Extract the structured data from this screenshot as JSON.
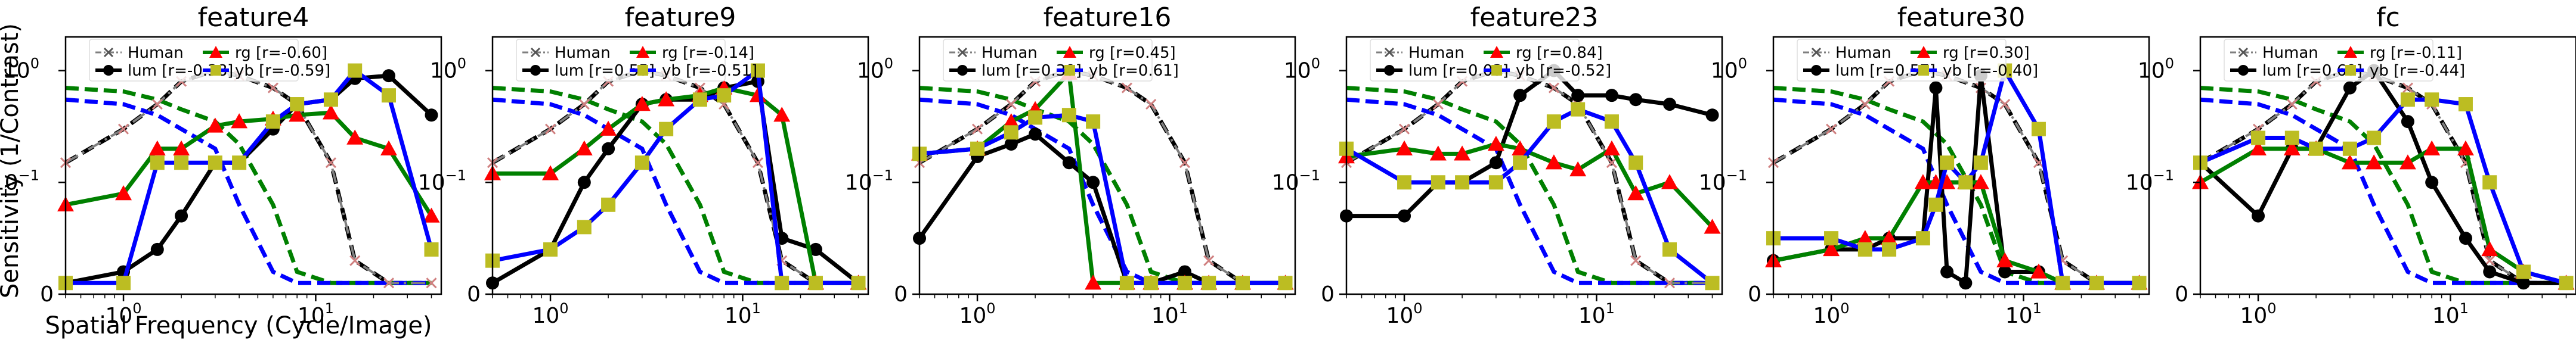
{
  "figure": {
    "ylabel": "Sensitivity (1/Contrast)",
    "xlabel": "Spatial Frequency (Cycle/Image)"
  },
  "styles": {
    "human": {
      "color": "#7f7f7f",
      "marker": "x",
      "dash": "dashdot"
    },
    "lum": {
      "color": "#000000",
      "marker": "circle",
      "dash": "solid"
    },
    "rg": {
      "color": "#008000",
      "marker": "triangle",
      "marker_color": "#ff0000",
      "dash": "solid"
    },
    "yb": {
      "color": "#0000ff",
      "marker": "square",
      "marker_color": "#bcbd22",
      "dash": "solid"
    },
    "ref_lum": {
      "color": "#000000",
      "dash": "dashed"
    },
    "ref_rg": {
      "color": "#008000",
      "dash": "dashed"
    },
    "ref_yb": {
      "color": "#0000ff",
      "dash": "dashed"
    }
  },
  "chart_data": [
    {
      "type": "line",
      "title": "feature4",
      "x_scale": "log",
      "y_scale": "symlog",
      "xlim": [
        0.5,
        45
      ],
      "ylim": [
        0,
        2
      ],
      "legend": [
        "Human",
        "lum [r=-0.38]",
        "rg [r=-0.60]",
        "yb [r=-0.59]"
      ],
      "x": [
        0.5,
        1,
        1.5,
        2,
        3,
        4,
        6,
        8,
        12,
        16,
        24,
        40
      ],
      "series": [
        {
          "key": "lum",
          "values": [
            0.01,
            0.02,
            0.04,
            0.07,
            0.15,
            0.15,
            0.3,
            0.5,
            0.55,
            0.85,
            0.9,
            0.4
          ]
        },
        {
          "key": "rg",
          "values": [
            0.08,
            0.09,
            0.2,
            0.2,
            0.32,
            0.35,
            0.37,
            0.4,
            0.42,
            0.25,
            0.2,
            0.07
          ]
        },
        {
          "key": "yb",
          "values": [
            0.01,
            0.01,
            0.15,
            0.15,
            0.15,
            0.15,
            0.35,
            0.5,
            0.55,
            1.0,
            0.6,
            0.04
          ]
        }
      ]
    },
    {
      "type": "line",
      "title": "feature9",
      "x_scale": "log",
      "y_scale": "symlog",
      "xlim": [
        0.5,
        45
      ],
      "ylim": [
        0,
        2
      ],
      "legend": [
        "Human",
        "lum [r=0.55]",
        "rg [r=-0.14]",
        "yb [r=-0.51]"
      ],
      "x": [
        0.5,
        1,
        1.5,
        2,
        3,
        4,
        6,
        8,
        12,
        16,
        24,
        40
      ],
      "series": [
        {
          "key": "lum",
          "values": [
            0.01,
            0.04,
            0.1,
            0.2,
            0.5,
            0.55,
            0.55,
            0.7,
            0.8,
            0.05,
            0.04,
            0.01
          ]
        },
        {
          "key": "rg",
          "values": [
            0.12,
            0.12,
            0.2,
            0.3,
            0.5,
            0.55,
            0.6,
            0.7,
            0.6,
            0.4,
            0.01,
            0.01
          ]
        },
        {
          "key": "yb",
          "values": [
            0.03,
            0.04,
            0.06,
            0.08,
            0.15,
            0.3,
            0.55,
            0.6,
            1.0,
            0.01,
            0.01,
            0.01
          ]
        }
      ]
    },
    {
      "type": "line",
      "title": "feature16",
      "x_scale": "log",
      "y_scale": "symlog",
      "xlim": [
        0.5,
        45
      ],
      "ylim": [
        0,
        2
      ],
      "legend": [
        "Human",
        "lum [r=0.39]",
        "rg [r=0.45]",
        "yb [r=0.61]"
      ],
      "x": [
        0.5,
        1,
        1.5,
        2,
        3,
        4,
        6,
        8,
        12,
        16,
        24,
        40
      ],
      "series": [
        {
          "key": "lum",
          "values": [
            0.05,
            0.17,
            0.22,
            0.27,
            0.15,
            0.1,
            0.01,
            0.01,
            0.02,
            0.01,
            0.01,
            0.01
          ]
        },
        {
          "key": "rg",
          "values": [
            0.18,
            0.2,
            0.35,
            0.45,
            0.95,
            0.01,
            0.01,
            0.01,
            0.01,
            0.01,
            0.01,
            0.01
          ]
        },
        {
          "key": "yb",
          "values": [
            0.18,
            0.2,
            0.28,
            0.38,
            0.4,
            0.35,
            0.01,
            0.01,
            0.01,
            0.01,
            0.01,
            0.01
          ]
        }
      ]
    },
    {
      "type": "line",
      "title": "feature23",
      "x_scale": "log",
      "y_scale": "symlog",
      "xlim": [
        0.5,
        45
      ],
      "ylim": [
        0,
        2
      ],
      "legend": [
        "Human",
        "lum [r=0.03]",
        "rg [r=0.84]",
        "yb [r=-0.52]"
      ],
      "x": [
        0.5,
        1,
        1.5,
        2,
        3,
        4,
        6,
        8,
        12,
        16,
        24,
        40
      ],
      "series": [
        {
          "key": "lum",
          "values": [
            0.07,
            0.07,
            0.1,
            0.1,
            0.15,
            0.6,
            1.0,
            0.6,
            0.6,
            0.55,
            0.5,
            0.4
          ]
        },
        {
          "key": "rg",
          "values": [
            0.17,
            0.2,
            0.18,
            0.18,
            0.22,
            0.2,
            0.15,
            0.13,
            0.2,
            0.09,
            0.1,
            0.06
          ]
        },
        {
          "key": "yb",
          "values": [
            0.2,
            0.1,
            0.1,
            0.1,
            0.1,
            0.15,
            0.35,
            0.45,
            0.35,
            0.15,
            0.04,
            0.01
          ]
        }
      ]
    },
    {
      "type": "line",
      "title": "feature30",
      "x_scale": "log",
      "y_scale": "symlog",
      "xlim": [
        0.5,
        45
      ],
      "ylim": [
        0,
        2
      ],
      "legend": [
        "Human",
        "lum [r=0.57]",
        "rg [r=0.30]",
        "yb [r=-0.40]"
      ],
      "x": [
        0.5,
        1,
        1.5,
        2,
        3,
        3.5,
        4,
        5,
        6,
        8,
        12,
        16,
        24,
        40
      ],
      "series": [
        {
          "key": "lum",
          "values": [
            0.03,
            0.04,
            0.04,
            0.05,
            0.05,
            0.7,
            0.02,
            0.01,
            0.9,
            0.02,
            0.02,
            0.01,
            0.01,
            0.01
          ]
        },
        {
          "key": "rg",
          "values": [
            0.03,
            0.04,
            0.05,
            0.05,
            0.1,
            0.1,
            0.1,
            0.1,
            0.1,
            0.03,
            0.02,
            0.01,
            0.01,
            0.01
          ]
        },
        {
          "key": "yb",
          "values": [
            0.05,
            0.05,
            0.04,
            0.04,
            0.05,
            0.08,
            0.15,
            0.1,
            0.15,
            1.0,
            0.3,
            0.01,
            0.01,
            0.01
          ]
        }
      ]
    },
    {
      "type": "line",
      "title": "fc",
      "x_scale": "log",
      "y_scale": "symlog",
      "xlim": [
        0.5,
        45
      ],
      "ylim": [
        0,
        2
      ],
      "legend": [
        "Human",
        "lum [r=0.69]",
        "rg [r=-0.11]",
        "yb [r=-0.44]"
      ],
      "legend_rg_note": "[r=0.44]",
      "x": [
        0.5,
        1,
        1.5,
        2,
        3,
        4,
        6,
        8,
        12,
        16,
        24,
        40
      ],
      "series": [
        {
          "key": "lum",
          "values": [
            0.15,
            0.07,
            0.2,
            0.2,
            0.7,
            1.0,
            0.35,
            0.1,
            0.05,
            0.02,
            0.01,
            0.01
          ]
        },
        {
          "key": "rg",
          "values": [
            0.1,
            0.2,
            0.2,
            0.2,
            0.15,
            0.15,
            0.15,
            0.2,
            0.2,
            0.04,
            0.02,
            0.01
          ]
        },
        {
          "key": "yb",
          "values": [
            0.15,
            0.25,
            0.25,
            0.2,
            0.2,
            0.25,
            0.55,
            0.55,
            0.5,
            0.1,
            0.02,
            0.01
          ]
        }
      ]
    }
  ],
  "reference_curves": {
    "x": [
      0.5,
      1,
      1.5,
      2,
      3,
      4,
      6,
      8,
      12,
      16,
      24,
      40
    ],
    "human": [
      0.15,
      0.3,
      0.5,
      0.8,
      1.0,
      0.9,
      0.7,
      0.5,
      0.15,
      0.03,
      0.01,
      0.01
    ],
    "ref_lum": [
      0.15,
      0.3,
      0.5,
      0.8,
      1.0,
      0.9,
      0.7,
      0.5,
      0.15,
      0.03,
      0.01,
      0.01
    ],
    "ref_rg": [
      0.7,
      0.65,
      0.55,
      0.45,
      0.35,
      0.22,
      0.08,
      0.02,
      0.01,
      0.01,
      0.01,
      0.01
    ],
    "ref_yb": [
      0.55,
      0.5,
      0.4,
      0.3,
      0.2,
      0.08,
      0.02,
      0.01,
      0.01,
      0.01,
      0.01,
      0.01
    ]
  }
}
